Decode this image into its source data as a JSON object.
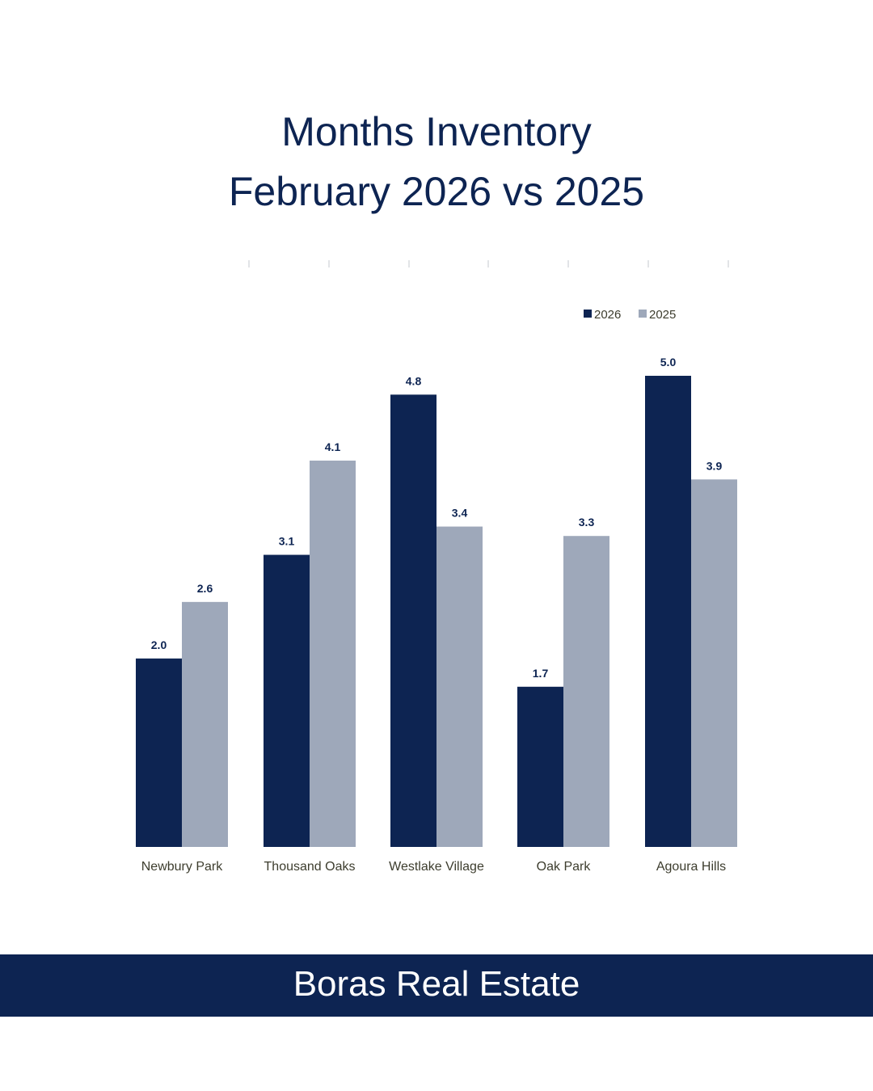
{
  "chart_data": {
    "type": "bar",
    "title_line1": "Months Inventory",
    "title_line2": "February 2026 vs 2025",
    "categories": [
      "Newbury Park",
      "Thousand Oaks",
      "Westlake Village",
      "Oak Park",
      "Agoura Hills"
    ],
    "series": [
      {
        "name": "2026",
        "color": "#0d2452",
        "values": [
          2.0,
          3.1,
          4.8,
          1.7,
          5.0
        ],
        "labels": [
          "2.0",
          "3.1",
          "4.8",
          "1.7",
          "5.0"
        ]
      },
      {
        "name": "2025",
        "color": "#9ea8ba",
        "values": [
          2.6,
          4.1,
          3.4,
          3.3,
          3.9
        ],
        "labels": [
          "2.6",
          "4.1",
          "3.4",
          "3.3",
          "3.9"
        ]
      }
    ],
    "ylim": [
      0,
      5.0
    ],
    "legend_position": "top-right",
    "grid": false
  },
  "footer": {
    "brand": "Boras Real Estate"
  }
}
